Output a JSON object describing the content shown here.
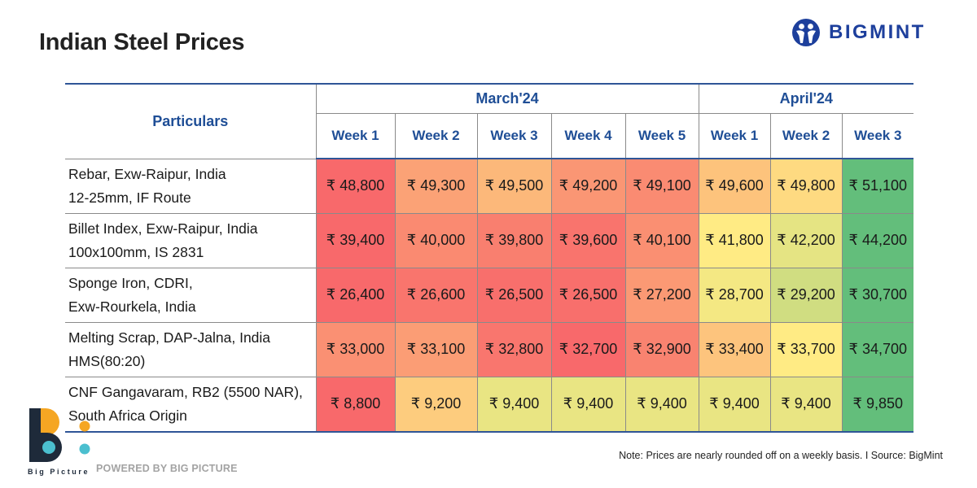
{
  "title": "Indian Steel Prices",
  "brand": {
    "name": "BIGMINT",
    "icon": "bigmint-people-icon",
    "color": "#1d3f9c"
  },
  "chart_data": {
    "type": "table",
    "title": "Indian Steel Prices",
    "row_header": "Particulars",
    "currency_symbol": "₹",
    "months": [
      {
        "label": "March'24",
        "span": 5
      },
      {
        "label": "April'24",
        "span": 3
      }
    ],
    "weeks": [
      "Week 1",
      "Week 2",
      "Week 3",
      "Week 4",
      "Week 5",
      "Week 1",
      "Week 2",
      "Week 3"
    ],
    "rows": [
      {
        "lines": [
          "Rebar, Exw-Raipur, India",
          "12-25mm, IF Route"
        ],
        "values": [
          48800,
          49300,
          49500,
          49200,
          49100,
          49600,
          49800,
          51100
        ]
      },
      {
        "lines": [
          "Billet Index, Exw-Raipur, India",
          "100x100mm, IS 2831"
        ],
        "values": [
          39400,
          40000,
          39800,
          39600,
          40100,
          41800,
          42200,
          44200
        ]
      },
      {
        "lines": [
          "Sponge Iron, CDRI,",
          "Exw-Rourkela, India"
        ],
        "values": [
          26400,
          26600,
          26500,
          26500,
          27200,
          28700,
          29200,
          30700
        ]
      },
      {
        "lines": [
          "Melting Scrap, DAP-Jalna, India",
          "HMS(80:20)"
        ],
        "values": [
          33000,
          33100,
          32800,
          32700,
          32900,
          33400,
          33700,
          34700
        ]
      },
      {
        "lines": [
          "CNF Gangavaram, RB2 (5500 NAR),",
          "South Africa Origin"
        ],
        "values": [
          8800,
          9200,
          9400,
          9400,
          9400,
          9400,
          9400,
          9850
        ]
      }
    ],
    "color_scale": {
      "type": "per-row",
      "low": "#f8696b",
      "mid": "#ffeb84",
      "high": "#63be7b"
    }
  },
  "footnote": "Note: Prices are nearly rounded off on a weekly basis.  I  Source: BigMint",
  "footer": {
    "logo_caption": "Big Picture",
    "powered_by": "POWERED BY BIG PICTURE",
    "logo_colors": {
      "dark": "#1e2a3a",
      "orange": "#f5a623",
      "teal": "#4bbfcf"
    }
  }
}
